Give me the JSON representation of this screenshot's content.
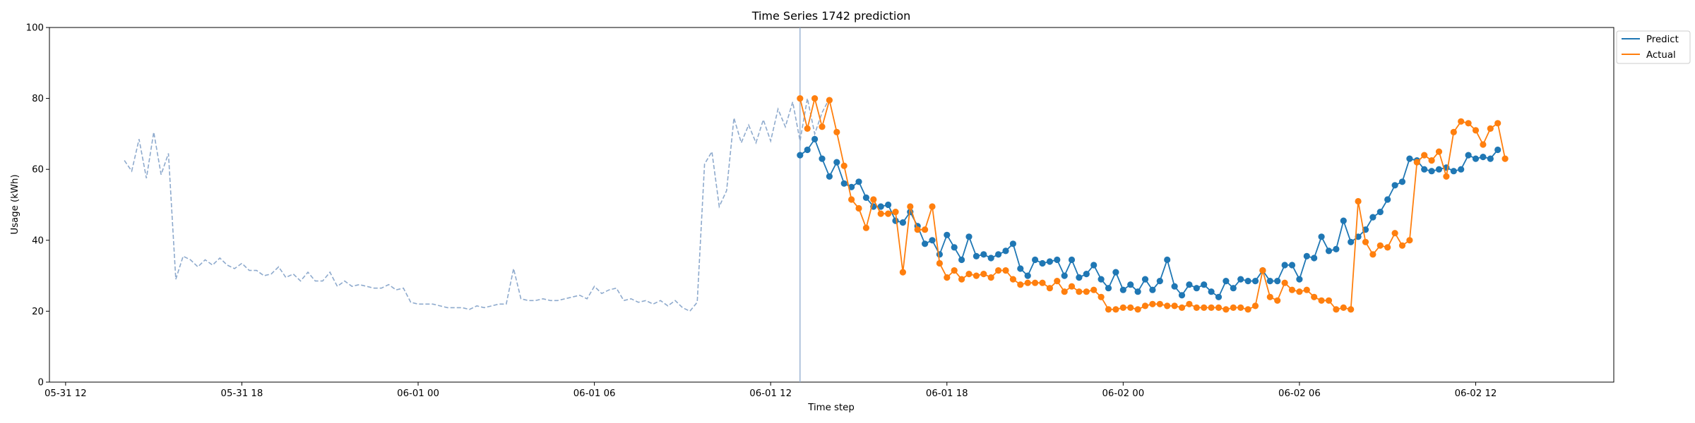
{
  "chart_data": {
    "type": "line",
    "title": "Time Series 1742 prediction",
    "xlabel": "Time step",
    "ylabel": "Usage (kWh)",
    "ylim": [
      0,
      100
    ],
    "yticks": [
      0,
      20,
      40,
      60,
      80,
      100
    ],
    "xticks": [
      {
        "label": "05-31 12",
        "hours": 0
      },
      {
        "label": "05-31 18",
        "hours": 6
      },
      {
        "label": "06-01 00",
        "hours": 12
      },
      {
        "label": "06-01 06",
        "hours": 18
      },
      {
        "label": "06-01 12",
        "hours": 24
      },
      {
        "label": "06-01 18",
        "hours": 30
      },
      {
        "label": "06-02 00",
        "hours": 36
      },
      {
        "label": "06-02 06",
        "hours": 42
      },
      {
        "label": "06-02 12",
        "hours": 48
      }
    ],
    "xlim_hours": [
      -0.55,
      52.7
    ],
    "step_hours": 0.25,
    "forecast_start_hours": 25.0,
    "history": {
      "start_hours": 2.0,
      "color": "#8eaacd",
      "values": [
        62.5,
        59.5,
        68.5,
        57.5,
        70.5,
        58.5,
        64.5,
        29,
        35.5,
        34.5,
        32.5,
        34.5,
        33,
        35,
        33,
        32,
        33.5,
        31.5,
        31.5,
        30,
        30.5,
        32.5,
        29.5,
        30.5,
        28.5,
        31,
        28.5,
        28.5,
        31,
        27,
        28.5,
        27,
        27.5,
        27,
        26.5,
        26.5,
        27.5,
        26,
        26.5,
        22.5,
        22,
        22,
        22,
        21.5,
        21,
        21,
        21,
        20.5,
        21.5,
        21,
        21.5,
        22,
        22,
        32,
        23.5,
        23,
        23,
        23.5,
        23,
        23,
        23.5,
        24,
        24.5,
        23.5,
        27,
        25,
        26,
        26.5,
        23,
        23.5,
        22.5,
        23,
        22,
        23,
        21.5,
        23,
        21,
        20,
        22.5,
        61.5,
        65,
        49.5,
        54,
        74.5,
        67.5,
        72.5,
        67.5,
        74,
        68,
        77,
        72,
        79,
        68,
        80,
        70,
        76,
        80
      ]
    },
    "series": [
      {
        "name": "Predict",
        "color": "#1f77b4",
        "values": [
          64,
          65.5,
          68.5,
          63,
          58,
          62,
          56,
          55,
          56.5,
          52,
          49.5,
          49.5,
          50,
          45.5,
          45,
          48,
          44,
          39,
          40,
          36,
          41.5,
          38,
          34.5,
          41,
          35.5,
          36,
          35,
          36,
          37,
          39,
          32,
          30,
          34.5,
          33.5,
          34,
          34.5,
          30,
          34.5,
          29.5,
          30.5,
          33,
          29,
          26.5,
          31,
          26,
          27.5,
          25.5,
          29,
          26,
          28.5,
          34.5,
          27,
          24.5,
          27.5,
          26.5,
          27.5,
          25.5,
          24,
          28.5,
          26.5,
          29,
          28.5,
          28.5,
          31.5,
          28.5,
          28.5,
          33,
          33,
          29,
          35.5,
          35,
          41,
          37,
          37.5,
          45.5,
          39.5,
          41,
          43,
          46.5,
          48,
          51.5,
          55.5,
          56.5,
          63,
          62.5,
          60,
          59.5,
          60,
          60.5,
          59.5,
          60,
          64,
          63,
          63.5,
          63,
          65.5
        ]
      },
      {
        "name": "Actual",
        "color": "#ff7f0e",
        "values": [
          80,
          71.5,
          80,
          72,
          79.5,
          70.5,
          61,
          51.5,
          49,
          43.5,
          51.5,
          47.5,
          47.5,
          48,
          31,
          49.5,
          43,
          43,
          49.5,
          33.5,
          29.5,
          31.5,
          29,
          30.5,
          30,
          30.5,
          29.5,
          31.5,
          31.5,
          29,
          27.5,
          28,
          28,
          28,
          26.5,
          28.5,
          25.5,
          27,
          25.5,
          25.5,
          26,
          24,
          20.5,
          20.5,
          21,
          21,
          20.5,
          21.5,
          22,
          22,
          21.5,
          21.5,
          21,
          22,
          21,
          21,
          21,
          21,
          20.5,
          21,
          21,
          20.5,
          21.5,
          31.5,
          24,
          23,
          28,
          26,
          25.5,
          26,
          24,
          23,
          23,
          20.5,
          21,
          20.5,
          51,
          39.5,
          36,
          38.5,
          38,
          42,
          38.5,
          40,
          62,
          64,
          62.5,
          65,
          58,
          70.5,
          73.5,
          73,
          71,
          67,
          71.5,
          73,
          63
        ]
      }
    ],
    "legend": {
      "position": "upper right outside",
      "entries": [
        "Predict",
        "Actual"
      ]
    },
    "grid": false
  }
}
